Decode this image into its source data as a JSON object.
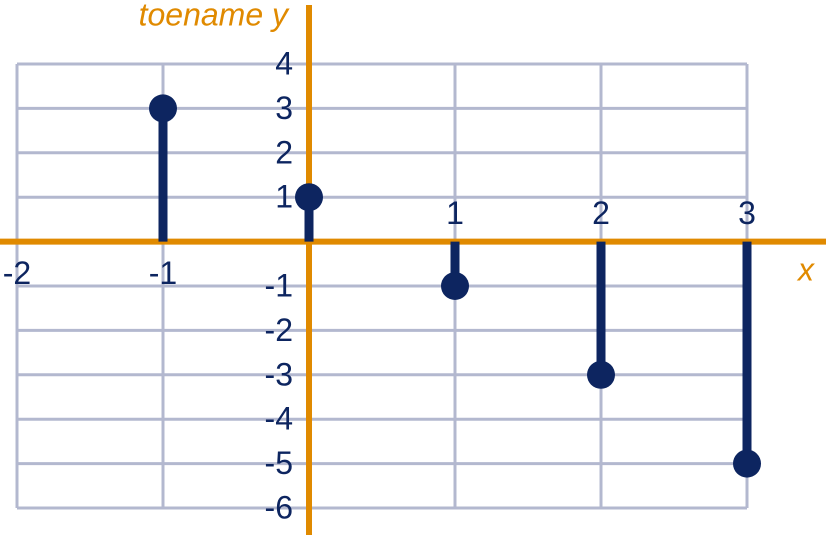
{
  "chart_data": {
    "type": "stem",
    "x_label": "x",
    "y_label": "toename y",
    "x": [
      -1,
      0,
      1,
      2,
      3
    ],
    "values": [
      3,
      1,
      -1,
      -3,
      -5
    ],
    "color": "#0d2560",
    "axis_color": "#e08a00",
    "grid_color": "#b3b8cf",
    "xlim": [
      -2,
      3
    ],
    "ylim": [
      -6,
      4
    ],
    "xticks": [
      -2,
      -1,
      1,
      2,
      3
    ],
    "yticks": [
      -6,
      -5,
      -4,
      -3,
      -2,
      -1,
      1,
      2,
      3,
      4
    ],
    "grid": true
  }
}
